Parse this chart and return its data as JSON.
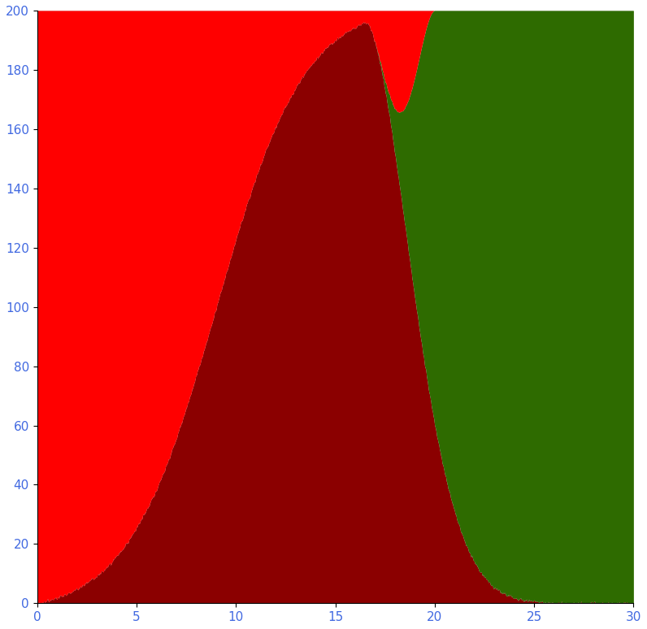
{
  "background_color": "#DCDCDC",
  "xlim": [
    0,
    30
  ],
  "ylim": [
    0,
    200
  ],
  "xticks": [
    0,
    5,
    10,
    15,
    20,
    25,
    30
  ],
  "yticks": [
    0,
    20,
    40,
    60,
    80,
    100,
    120,
    140,
    160,
    180,
    200
  ],
  "color_sick": "#8B0000",
  "color_healthy": "#2E6B00",
  "color_red_strip": "#FF0000",
  "tick_label_color": "#4169E1",
  "figsize": [
    7.96,
    7.74
  ],
  "dpi": 100
}
